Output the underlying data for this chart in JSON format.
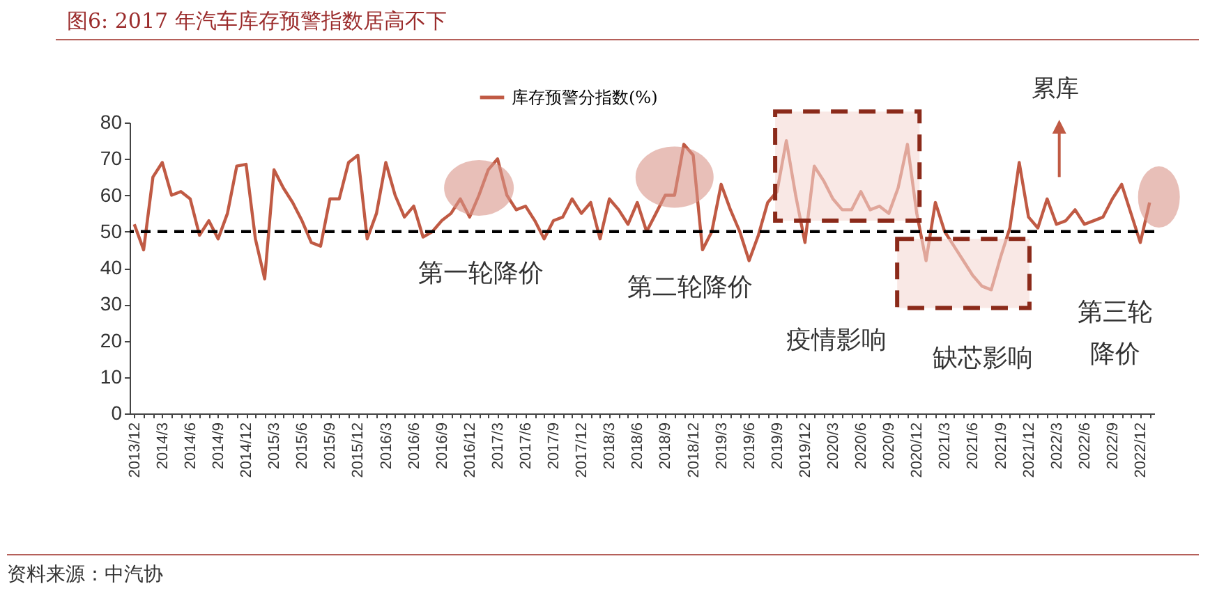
{
  "chart_data": {
    "type": "line",
    "title": "图6:   2017 年汽车库存预警指数居高不下",
    "categories": [
      "2013/12",
      null,
      null,
      "2014/3",
      null,
      null,
      "2014/6",
      null,
      null,
      "2014/9",
      null,
      null,
      "2014/12",
      null,
      null,
      "2015/3",
      null,
      null,
      "2015/6",
      null,
      null,
      "2015/9",
      null,
      null,
      "2015/12",
      null,
      null,
      "2016/3",
      null,
      null,
      "2016/6",
      null,
      null,
      "2016/9",
      null,
      null,
      "2016/12",
      null,
      null,
      "2017/3",
      null,
      null,
      "2017/6",
      null,
      null,
      "2017/9",
      null,
      null,
      "2017/12",
      null,
      null,
      "2018/3",
      null,
      null,
      "2018/6",
      null,
      null,
      "2018/9",
      null,
      null,
      "2018/12",
      null,
      null,
      "2019/3",
      null,
      null,
      "2019/6",
      null,
      null,
      "2019/9",
      null,
      null,
      "2019/12",
      null,
      null,
      "2020/3",
      null,
      null,
      "2020/6",
      null,
      null,
      "2020/9",
      null,
      null,
      "2020/12",
      null,
      null,
      "2021/3",
      null,
      null,
      "2021/6",
      null,
      null,
      "2021/9",
      null,
      null,
      "2021/12",
      null,
      null,
      "2022/3",
      null,
      null,
      "2022/6",
      null,
      null,
      "2022/9",
      null,
      null,
      "2022/12",
      null
    ],
    "series": [
      {
        "name": "库存预警分指数(%)",
        "color": "#c05a44",
        "values": [
          52,
          45,
          65,
          69,
          60,
          61,
          59,
          49,
          53,
          48,
          55,
          68,
          68.5,
          48,
          37,
          67,
          62,
          58,
          53,
          47,
          46,
          59,
          59,
          69,
          71,
          48,
          55,
          69,
          60,
          54,
          57,
          48.5,
          50,
          53,
          55,
          59,
          54,
          60,
          67,
          70,
          60,
          56,
          57,
          53,
          48,
          53,
          54,
          59,
          55,
          58,
          48,
          59,
          56,
          52,
          58,
          50,
          55,
          60,
          60,
          74,
          71,
          45,
          50,
          63,
          56,
          50,
          42,
          49,
          58,
          61,
          75,
          60,
          47,
          68,
          64,
          59,
          56,
          56,
          61,
          56,
          57,
          55,
          62,
          74,
          55,
          42,
          58,
          50,
          46,
          42,
          38,
          35,
          34,
          43,
          51,
          69,
          54,
          51,
          59,
          52,
          53,
          56,
          52,
          53,
          54,
          59,
          63,
          55,
          47,
          58
        ]
      }
    ],
    "ylim": [
      0,
      80
    ],
    "yticks": [
      0,
      10,
      20,
      30,
      40,
      50,
      60,
      70,
      80
    ],
    "grid": false,
    "legend": "top",
    "line_style": "solid",
    "marker": "none",
    "ref_lines": [
      {
        "axis": "y",
        "value": 50,
        "color": "#000000",
        "line_style": "dashed"
      }
    ],
    "annotations": [
      "第一轮降价",
      "第二轮降价",
      "疫情影响",
      "缺芯影响",
      "第三轮降价",
      "累库",
      "资料来源：中汽协"
    ]
  }
}
